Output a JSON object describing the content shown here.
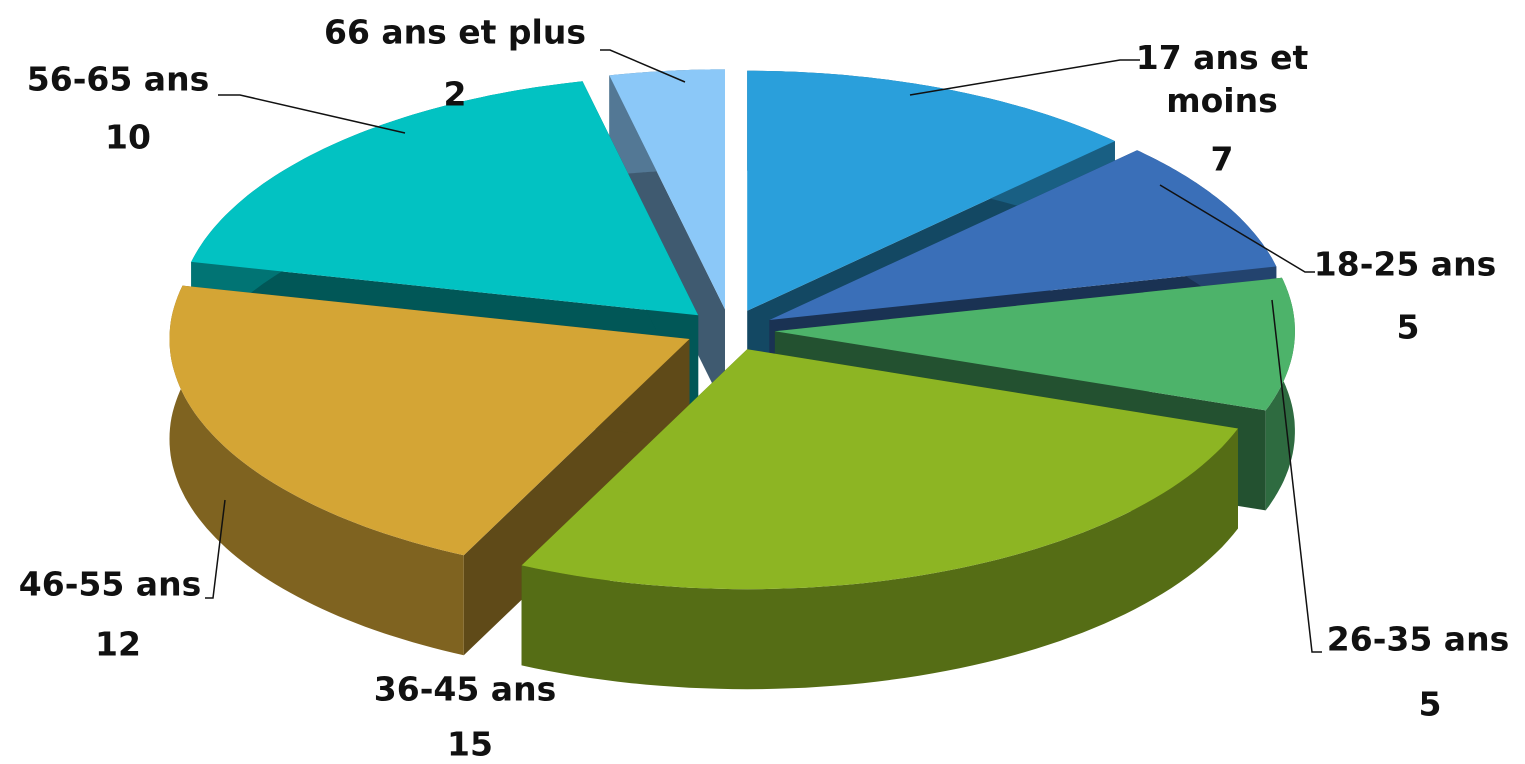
{
  "chart_data": {
    "type": "pie",
    "categories": [
      "17 ans et moins",
      "18-25 ans",
      "26-35 ans",
      "36-45 ans",
      "46-55 ans",
      "56-65 ans",
      "66 ans et plus"
    ],
    "values": [
      7,
      5,
      5,
      15,
      12,
      10,
      2
    ],
    "colors": [
      "#2a9fdb",
      "#3a6fb8",
      "#4db36a",
      "#8db523",
      "#d4a535",
      "#02c2c2",
      "#8bc8f8"
    ]
  }
}
